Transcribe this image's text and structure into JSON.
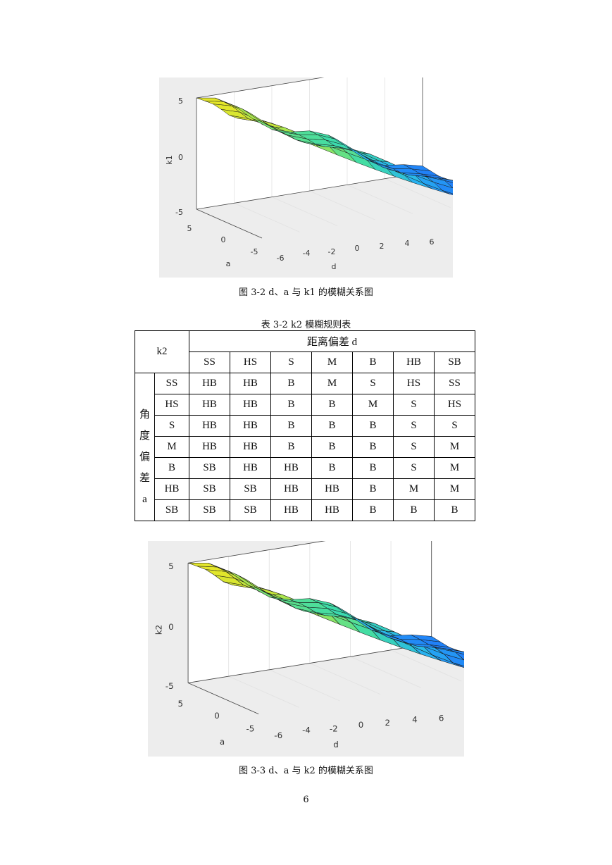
{
  "figure1": {
    "caption": "图 3-2 d、a 与 k1 的模糊关系图",
    "zlabel": "k1",
    "xlabel": "d",
    "ylabel": "a"
  },
  "table": {
    "caption": "表 3-2 k2 模糊规则表",
    "corner": "k2",
    "col_group_header": "距离偏差 d",
    "row_group_header": [
      "角",
      "度",
      "偏",
      "差",
      "a"
    ],
    "columns": [
      "SS",
      "HS",
      "S",
      "M",
      "B",
      "HB",
      "SB"
    ],
    "rows": [
      {
        "label": "SS",
        "cells": [
          "HB",
          "HB",
          "B",
          "M",
          "S",
          "HS",
          "SS"
        ]
      },
      {
        "label": "HS",
        "cells": [
          "HB",
          "HB",
          "B",
          "B",
          "M",
          "S",
          "HS"
        ]
      },
      {
        "label": "S",
        "cells": [
          "HB",
          "HB",
          "B",
          "B",
          "B",
          "S",
          "S"
        ]
      },
      {
        "label": "M",
        "cells": [
          "HB",
          "HB",
          "B",
          "B",
          "B",
          "S",
          "M"
        ]
      },
      {
        "label": "B",
        "cells": [
          "SB",
          "HB",
          "HB",
          "B",
          "B",
          "S",
          "M"
        ]
      },
      {
        "label": "HB",
        "cells": [
          "SB",
          "SB",
          "HB",
          "HB",
          "B",
          "M",
          "M"
        ]
      },
      {
        "label": "SB",
        "cells": [
          "SB",
          "SB",
          "HB",
          "HB",
          "B",
          "B",
          "B"
        ]
      }
    ]
  },
  "figure2": {
    "caption": "图 3-3 d、a 与 k2 的模糊关系图",
    "zlabel": "k2",
    "xlabel": "d",
    "ylabel": "a"
  },
  "axes": {
    "z_ticks": [
      "5",
      "0",
      "-5"
    ],
    "a_ticks": [
      "5",
      "0",
      "-5"
    ],
    "d_ticks": [
      "-6",
      "-4",
      "-2",
      "0",
      "2",
      "4",
      "6"
    ]
  },
  "page_number": "6"
}
